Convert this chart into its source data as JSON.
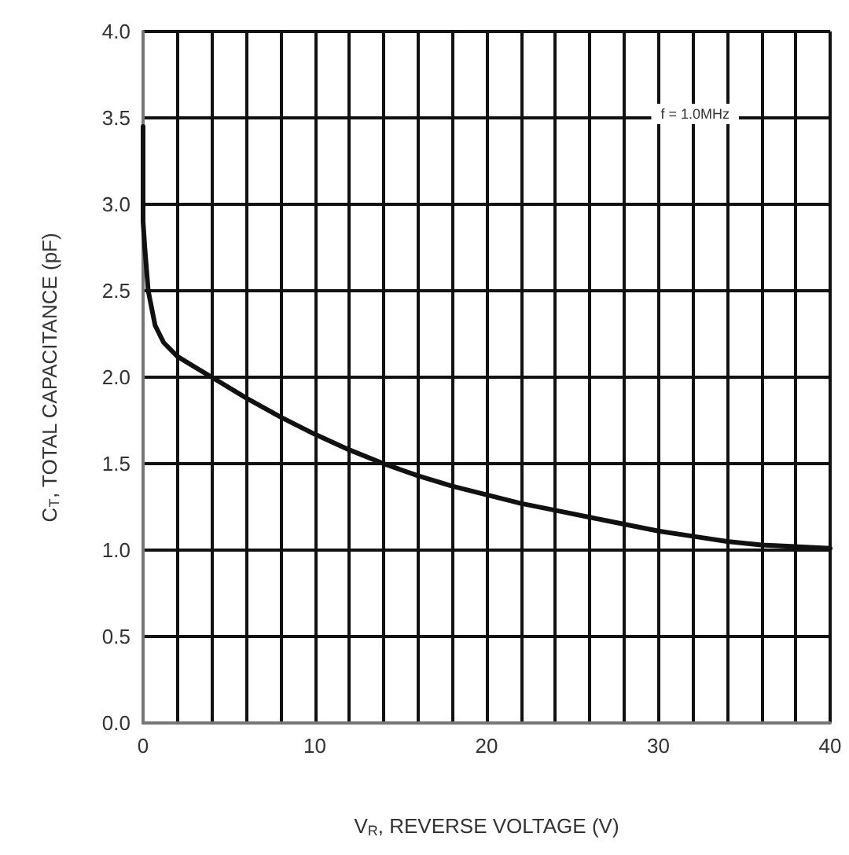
{
  "chart_data": {
    "type": "line",
    "xlabel": "V$_{R}$, REVERSE VOLTAGE (V)",
    "ylabel": "C$_{T}$, TOTAL CAPACITANCE (pF)",
    "annotations": [
      "f = 1.0MHz"
    ],
    "series": [
      {
        "color": "#111111",
        "x": [
          0,
          0,
          0.1,
          0.3,
          0.7,
          1.2,
          2,
          4,
          6,
          8,
          10,
          12,
          14,
          16,
          18,
          20,
          22,
          24,
          26,
          28,
          30,
          32,
          34,
          36,
          38,
          40
        ],
        "values": [
          3.45,
          2.9,
          2.75,
          2.5,
          2.3,
          2.2,
          2.12,
          2.0,
          1.88,
          1.77,
          1.67,
          1.58,
          1.5,
          1.43,
          1.37,
          1.32,
          1.27,
          1.23,
          1.19,
          1.15,
          1.11,
          1.08,
          1.05,
          1.03,
          1.02,
          1.01
        ]
      }
    ],
    "xlim": [
      0,
      40
    ],
    "xticks": [
      0,
      {
        "value": 2,
        "label": null
      },
      {
        "value": 4,
        "label": null
      },
      {
        "value": 6,
        "label": null
      },
      {
        "value": 8,
        "label": null
      },
      10,
      {
        "value": 12,
        "label": null
      },
      {
        "value": 14,
        "label": null
      },
      {
        "value": 16,
        "label": null
      },
      {
        "value": 18,
        "label": null
      },
      20,
      {
        "value": 22,
        "label": null
      },
      {
        "value": 24,
        "label": null
      },
      {
        "value": 26,
        "label": null
      },
      {
        "value": 28,
        "label": null
      },
      30,
      {
        "value": 32,
        "label": null
      },
      {
        "value": 34,
        "label": null
      },
      {
        "value": 36,
        "label": null
      },
      {
        "value": 38,
        "label": null
      },
      40
    ],
    "ylim": [
      0,
      4
    ],
    "yticks": [
      {
        "value": 0,
        "label": "0.0"
      },
      0.5,
      {
        "value": 1,
        "label": "1.0"
      },
      1.5,
      {
        "value": 2,
        "label": "2.0"
      },
      2.5,
      {
        "value": 3,
        "label": "3.0"
      },
      3.5,
      {
        "value": 4,
        "label": "4.0"
      }
    ],
    "grid": true,
    "marker": "none",
    "line_style": "solid"
  }
}
